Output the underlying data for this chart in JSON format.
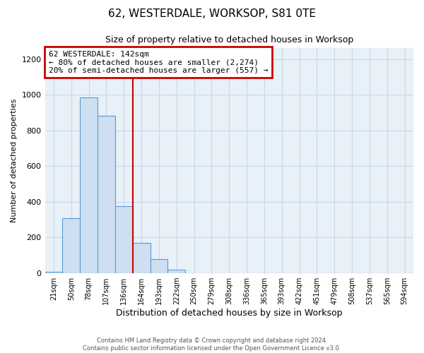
{
  "title": "62, WESTERDALE, WORKSOP, S81 0TE",
  "subtitle": "Size of property relative to detached houses in Worksop",
  "xlabel": "Distribution of detached houses by size in Worksop",
  "ylabel": "Number of detached properties",
  "bin_labels": [
    "21sqm",
    "50sqm",
    "78sqm",
    "107sqm",
    "136sqm",
    "164sqm",
    "193sqm",
    "222sqm",
    "250sqm",
    "279sqm",
    "308sqm",
    "336sqm",
    "365sqm",
    "393sqm",
    "422sqm",
    "451sqm",
    "479sqm",
    "508sqm",
    "537sqm",
    "565sqm",
    "594sqm"
  ],
  "bar_values": [
    10,
    310,
    985,
    880,
    375,
    170,
    80,
    20,
    0,
    0,
    0,
    0,
    0,
    0,
    0,
    0,
    0,
    0,
    0,
    0,
    0
  ],
  "bar_color": "#cddff0",
  "bar_edge_color": "#5b9bd5",
  "vline_color": "#cc0000",
  "vline_position": 4.5,
  "annotation_line1": "62 WESTERDALE: 142sqm",
  "annotation_line2": "← 80% of detached houses are smaller (2,274)",
  "annotation_line3": "20% of semi-detached houses are larger (557) →",
  "annotation_box_edge_color": "#cc0000",
  "ylim": [
    0,
    1260
  ],
  "yticks": [
    0,
    200,
    400,
    600,
    800,
    1000,
    1200
  ],
  "footer_line1": "Contains HM Land Registry data © Crown copyright and database right 2024.",
  "footer_line2": "Contains public sector information licensed under the Open Government Licence v3.0.",
  "background_color": "#ffffff",
  "grid_color": "#c8d8e8"
}
